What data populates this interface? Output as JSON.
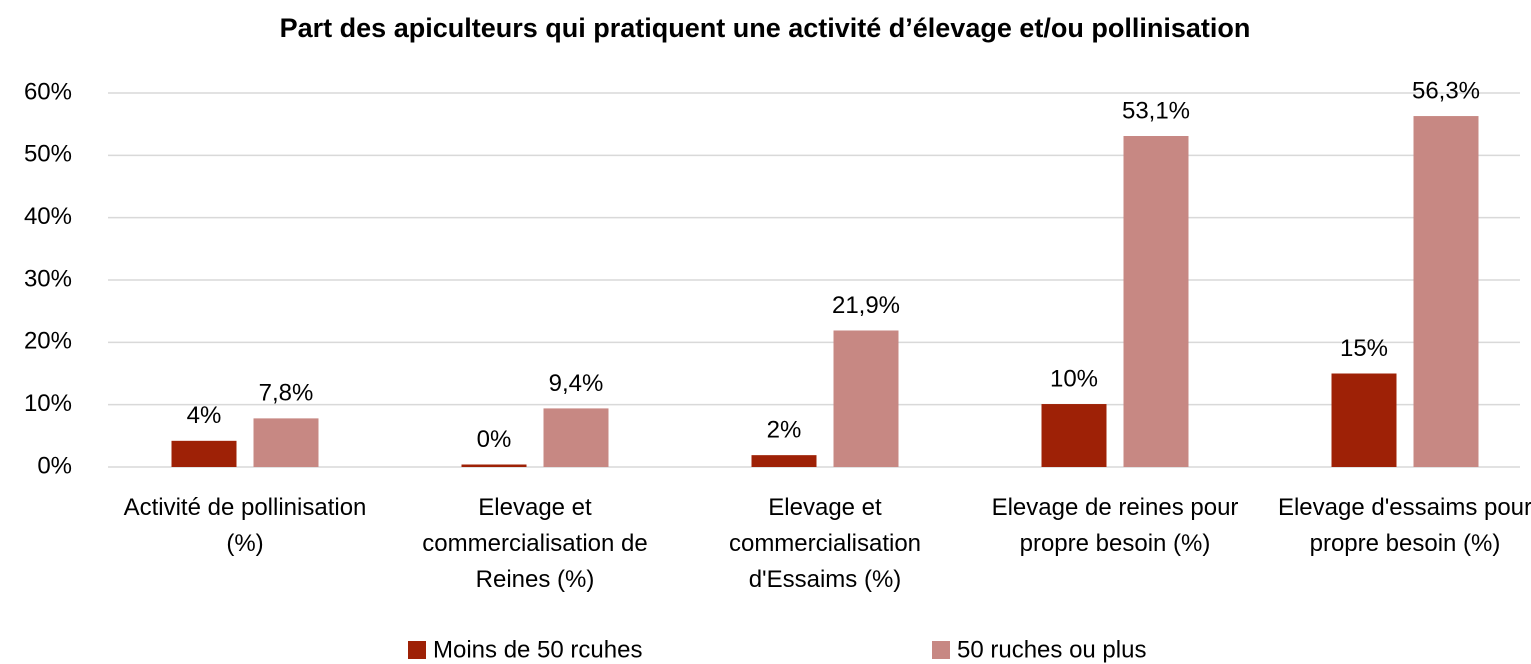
{
  "chart_data": {
    "type": "bar",
    "title": "Part des apiculteurs qui pratiquent une activité d’élevage et/ou pollinisation",
    "categories": [
      "Activité de pollinisation (%)",
      "Elevage et commercialisation de Reines (%)",
      "Elevage et commercialisation d'Essaims (%)",
      "Elevage de reines pour propre besoin (%)",
      "Elevage d'essaims pour propre besoin (%)"
    ],
    "series": [
      {
        "name": "Moins de 50 rcuhes",
        "color": "#9e2106",
        "values": [
          4.2,
          0.4,
          1.9,
          10.1,
          15
        ],
        "value_labels": [
          "4%",
          "0%",
          "2%",
          "10%",
          "15%"
        ]
      },
      {
        "name": "50 ruches ou plus",
        "color": "#c78883",
        "values": [
          7.8,
          9.4,
          21.9,
          53.1,
          56.3
        ],
        "value_labels": [
          "7,8%",
          "9,4%",
          "21,9%",
          "53,1%",
          "56,3%"
        ]
      }
    ],
    "ylim": [
      0,
      60
    ],
    "yticks": [
      {
        "value": 0,
        "label": "0%"
      },
      {
        "value": 10,
        "label": "10%"
      },
      {
        "value": 20,
        "label": "20%"
      },
      {
        "value": 30,
        "label": "30%"
      },
      {
        "value": 40,
        "label": "40%"
      },
      {
        "value": 50,
        "label": "50%"
      },
      {
        "value": 60,
        "label": "60%"
      }
    ],
    "grid": true,
    "legend": "bottom"
  }
}
